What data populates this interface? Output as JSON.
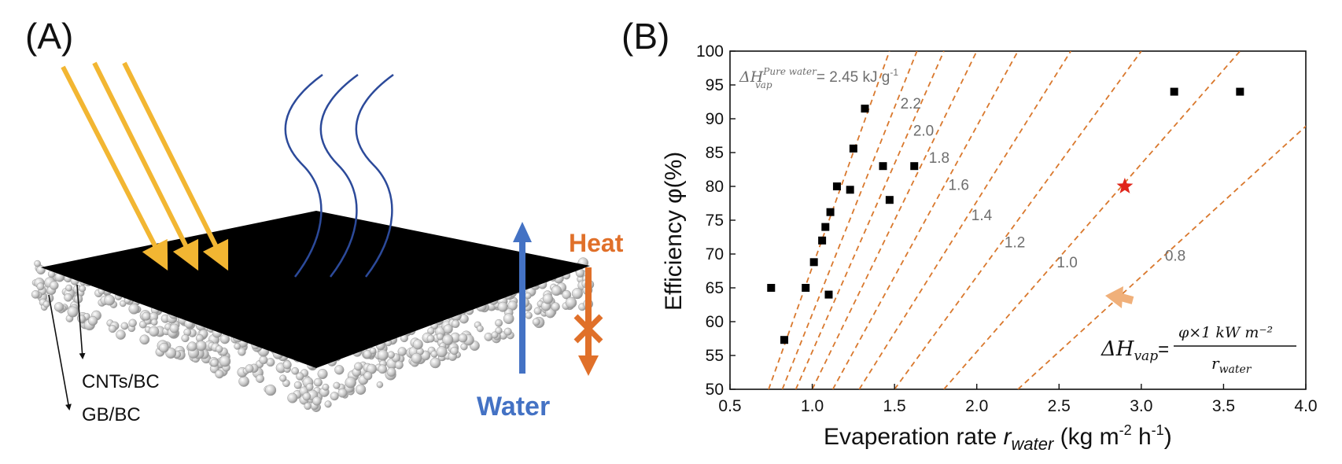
{
  "panel_a": {
    "label": "(A)",
    "layer_top": "CNTs/BC",
    "layer_bottom": "GB/BC",
    "heat_label": "Heat",
    "water_label": "Water",
    "colors": {
      "sun": "#f2b632",
      "vapor": "#2c4a9a",
      "water": "#4472c4",
      "heat": "#e0702a",
      "surface": "#000000"
    }
  },
  "panel_b": {
    "label": "(B)",
    "formula": {
      "lhs_main": "ΔH",
      "lhs_sub": "vap",
      "equals": "=",
      "numerator": "φ×1 kW m⁻²",
      "denominator": "r",
      "denominator_sub": "water"
    },
    "pure_water_label": {
      "main": "ΔH",
      "sup": "Pure water",
      "sub": "vap",
      "value": "= 2.45 kJ g",
      "exp": "-1"
    },
    "xlabel": {
      "main": "Evaperation rate ",
      "var": "r",
      "sub": "water",
      "unit_a": " (kg m",
      "exp1": "-2",
      "unit_b": " h",
      "exp2": "-1",
      "unit_c": ")"
    },
    "ylabel": "Efficiency φ(%)"
  },
  "chart_data": {
    "type": "scatter",
    "xlim": [
      0.5,
      4.0
    ],
    "ylim": [
      50,
      100
    ],
    "x_ticks": [
      "0.5",
      "1.0",
      "1.5",
      "2.0",
      "2.5",
      "3.0",
      "3.5",
      "4.0"
    ],
    "y_ticks": [
      "50",
      "55",
      "60",
      "65",
      "70",
      "75",
      "80",
      "85",
      "90",
      "95",
      "100"
    ],
    "grid": false,
    "series": [
      {
        "marker": "square",
        "color": "#000000",
        "points": [
          {
            "x": 0.75,
            "y": 65
          },
          {
            "x": 0.83,
            "y": 57.3
          },
          {
            "x": 0.96,
            "y": 65
          },
          {
            "x": 1.01,
            "y": 68.8
          },
          {
            "x": 1.06,
            "y": 72
          },
          {
            "x": 1.08,
            "y": 74
          },
          {
            "x": 1.11,
            "y": 76.2
          },
          {
            "x": 1.1,
            "y": 64
          },
          {
            "x": 1.15,
            "y": 80
          },
          {
            "x": 1.23,
            "y": 79.5
          },
          {
            "x": 1.25,
            "y": 85.6
          },
          {
            "x": 1.32,
            "y": 91.5
          },
          {
            "x": 1.43,
            "y": 83
          },
          {
            "x": 1.47,
            "y": 78
          },
          {
            "x": 1.62,
            "y": 83
          },
          {
            "x": 3.2,
            "y": 94
          },
          {
            "x": 3.6,
            "y": 94
          }
        ]
      },
      {
        "marker": "star",
        "color": "#e0261b",
        "points": [
          {
            "x": 2.9,
            "y": 80
          }
        ]
      }
    ],
    "reference_lines": {
      "color": "#d9782d",
      "style": "dashed",
      "values": [
        2.45,
        2.2,
        2.0,
        1.8,
        1.6,
        1.4,
        1.2,
        1.0,
        0.8
      ],
      "labels": [
        "",
        "2.2",
        "2.0",
        "1.8",
        "1.6",
        "1.4",
        "1.2",
        "1.0",
        "0.8"
      ]
    }
  }
}
